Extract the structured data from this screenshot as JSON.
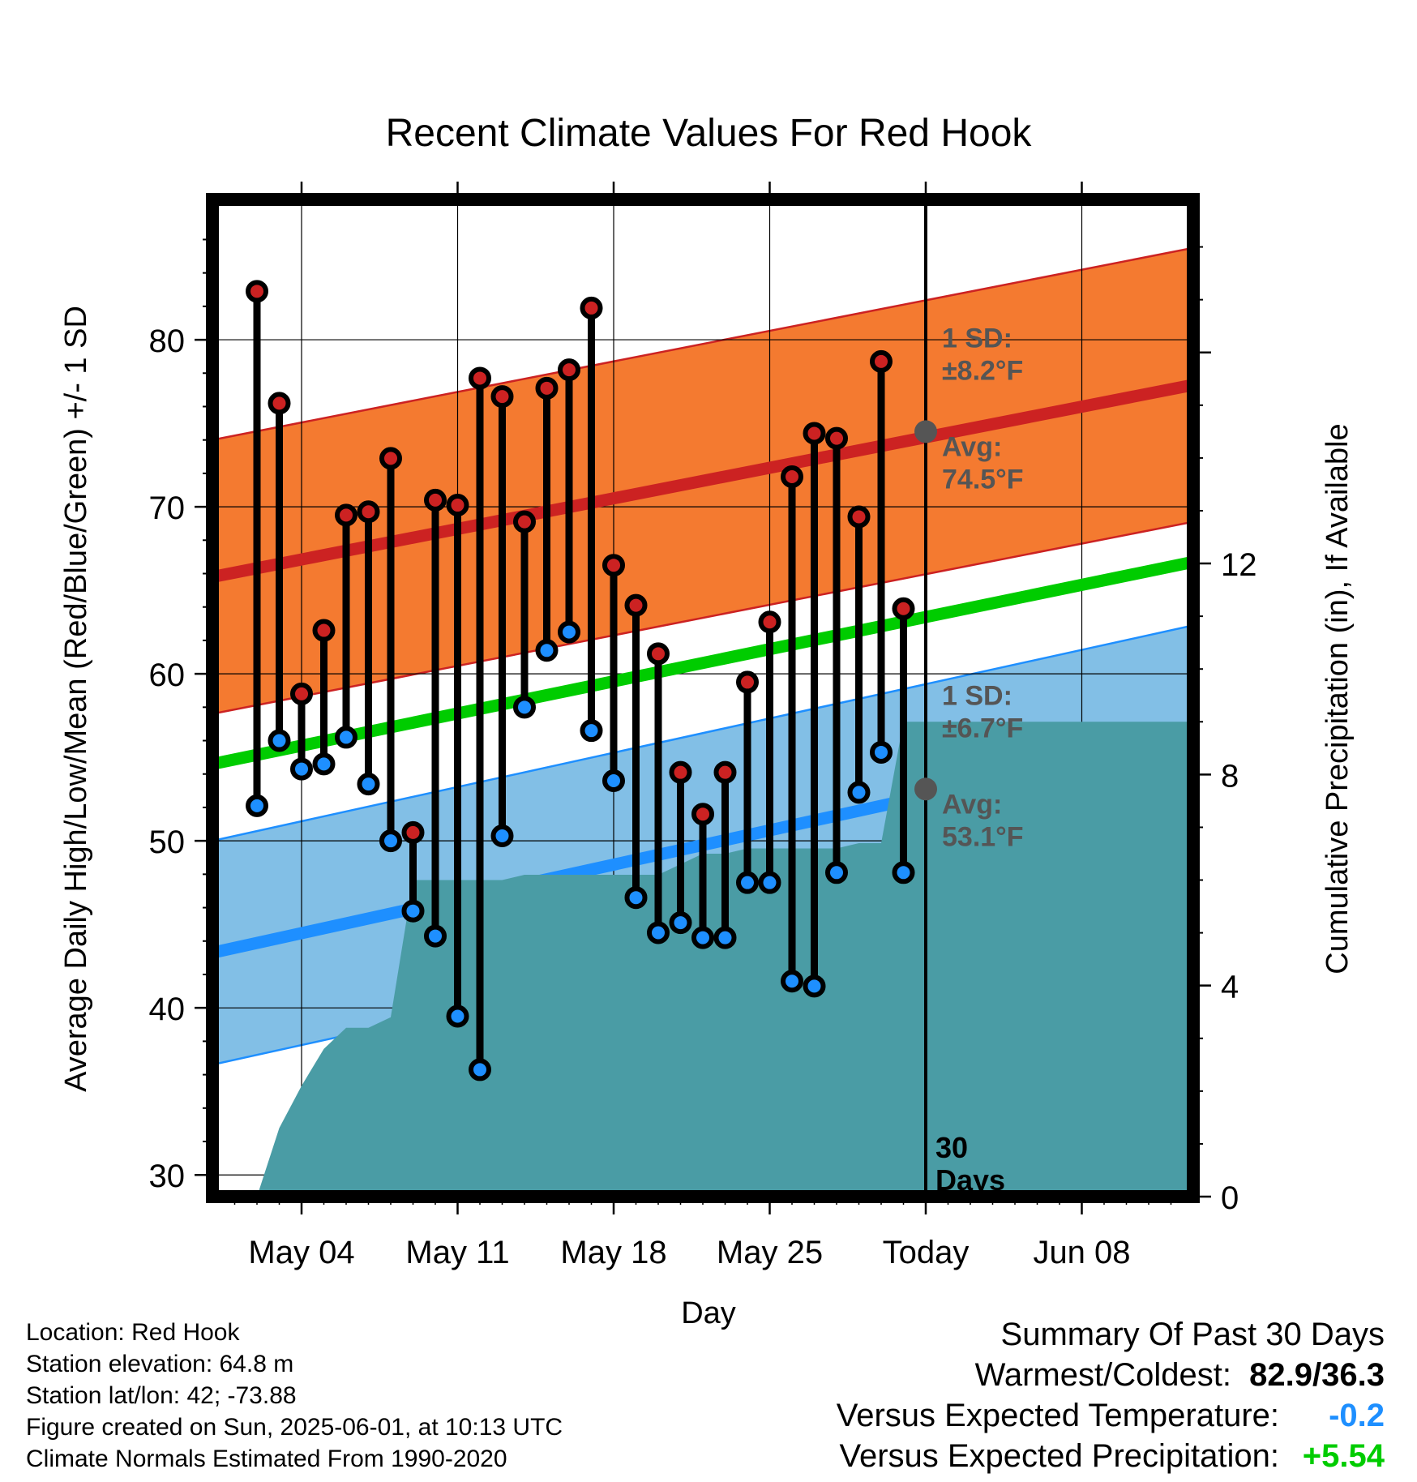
{
  "chart_data": {
    "type": "line",
    "title": "Recent Climate Values For Red Hook",
    "xlabel": "Day",
    "ylabel": "Average Daily High/Low/Mean (Red/Blue/Green) +/- 1 SD",
    "y2label": "Cumulative Precipitation (in), If Available",
    "ylim": [
      28.7,
      88.4
    ],
    "y2lim": [
      0,
      18.9
    ],
    "yticks": [
      30,
      40,
      50,
      60,
      70,
      80
    ],
    "y2ticks": [
      0,
      4,
      8,
      12
    ],
    "xlim": [
      "2025-04-30",
      "2025-06-13"
    ],
    "xtick_labels": [
      {
        "date": "2025-05-04",
        "label": "May 04"
      },
      {
        "date": "2025-05-11",
        "label": "May 11"
      },
      {
        "date": "2025-05-18",
        "label": "May 18"
      },
      {
        "date": "2025-05-25",
        "label": "May 25"
      },
      {
        "date": "2025-06-01",
        "label": "Today"
      },
      {
        "date": "2025-06-08",
        "label": "Jun 08"
      }
    ],
    "grid": true,
    "today": "2025-06-01",
    "today_annotation": [
      "30",
      "Days"
    ],
    "normal_high": {
      "start": {
        "date": "2025-04-30",
        "value": 65.8
      },
      "end": {
        "date": "2025-06-13",
        "value": 77.3
      },
      "sd": 8.2,
      "color": "#cc2222",
      "band_color": "#f47a30"
    },
    "normal_low": {
      "start": {
        "date": "2025-04-30",
        "value": 43.3
      },
      "end": {
        "date": "2025-06-13",
        "value": 56.2
      },
      "sd": 6.7,
      "color": "#1e8fff",
      "band_color": "#82bfe6"
    },
    "normal_mean": {
      "start": {
        "date": "2025-04-30",
        "value": 54.6
      },
      "end": {
        "date": "2025-06-13",
        "value": 66.7
      },
      "color": "#00cc00"
    },
    "high_annotation": {
      "sd_label": "1 SD:",
      "sd_value": "±8.2°F",
      "avg_label": "Avg:",
      "avg_value": "74.5°F",
      "avg": 74.5
    },
    "low_annotation": {
      "sd_label": "1 SD:",
      "sd_value": "±6.7°F",
      "avg_label": "Avg:",
      "avg_value": "53.1°F",
      "avg": 53.1
    },
    "dates": [
      "2025-05-02",
      "2025-05-03",
      "2025-05-04",
      "2025-05-05",
      "2025-05-06",
      "2025-05-07",
      "2025-05-08",
      "2025-05-09",
      "2025-05-10",
      "2025-05-11",
      "2025-05-12",
      "2025-05-13",
      "2025-05-14",
      "2025-05-15",
      "2025-05-16",
      "2025-05-17",
      "2025-05-18",
      "2025-05-19",
      "2025-05-20",
      "2025-05-21",
      "2025-05-22",
      "2025-05-23",
      "2025-05-24",
      "2025-05-25",
      "2025-05-26",
      "2025-05-27",
      "2025-05-28",
      "2025-05-29",
      "2025-05-30",
      "2025-05-31"
    ],
    "series": [
      {
        "name": "High",
        "color": "#cc2222",
        "values": [
          82.9,
          76.2,
          58.8,
          62.6,
          69.5,
          69.7,
          72.9,
          50.5,
          70.4,
          70.1,
          77.7,
          76.6,
          69.1,
          77.1,
          78.2,
          81.9,
          66.5,
          64.1,
          61.2,
          54.1,
          51.6,
          54.1,
          59.5,
          63.1,
          71.8,
          74.4,
          74.1,
          69.4,
          78.7,
          63.9
        ]
      },
      {
        "name": "Low",
        "color": "#1e8fff",
        "values": [
          52.1,
          56.0,
          54.3,
          54.6,
          56.2,
          53.4,
          50.0,
          45.8,
          44.3,
          39.5,
          36.3,
          50.3,
          58.0,
          61.4,
          62.5,
          56.6,
          53.6,
          46.6,
          44.5,
          45.1,
          44.2,
          44.2,
          47.5,
          47.5,
          41.6,
          41.3,
          48.1,
          52.9,
          55.3,
          48.1
        ]
      },
      {
        "name": "Cumulative Precipitation",
        "color": "#4a9ca5",
        "values": [
          0.0,
          1.3,
          2.1,
          2.8,
          3.2,
          3.2,
          3.4,
          6.0,
          6.0,
          6.0,
          6.0,
          6.0,
          6.1,
          6.1,
          6.1,
          6.1,
          6.1,
          6.1,
          6.1,
          6.3,
          6.5,
          6.5,
          6.6,
          6.6,
          6.6,
          6.6,
          6.6,
          6.7,
          6.7,
          9.0
        ]
      }
    ]
  },
  "info": {
    "location": "Location: Red Hook",
    "elevation": "Station elevation: 64.8 m",
    "latlon": "Station lat/lon: 42; -73.88",
    "created": "Figure created on Sun, 2025-06-01, at 10:13 UTC",
    "normals": "Climate Normals Estimated From 1990-2020"
  },
  "summary": {
    "title": "Summary Of Past 30 Days",
    "warm_cold_label": "Warmest/Coldest:",
    "warm_cold_value": "82.9/36.3",
    "temp_label": "Versus Expected Temperature:",
    "temp_value": "-0.2",
    "temp_color": "#1e8fff",
    "precip_label": "Versus Expected Precipitation:",
    "precip_value": "+5.54",
    "precip_color": "#00cc00"
  }
}
